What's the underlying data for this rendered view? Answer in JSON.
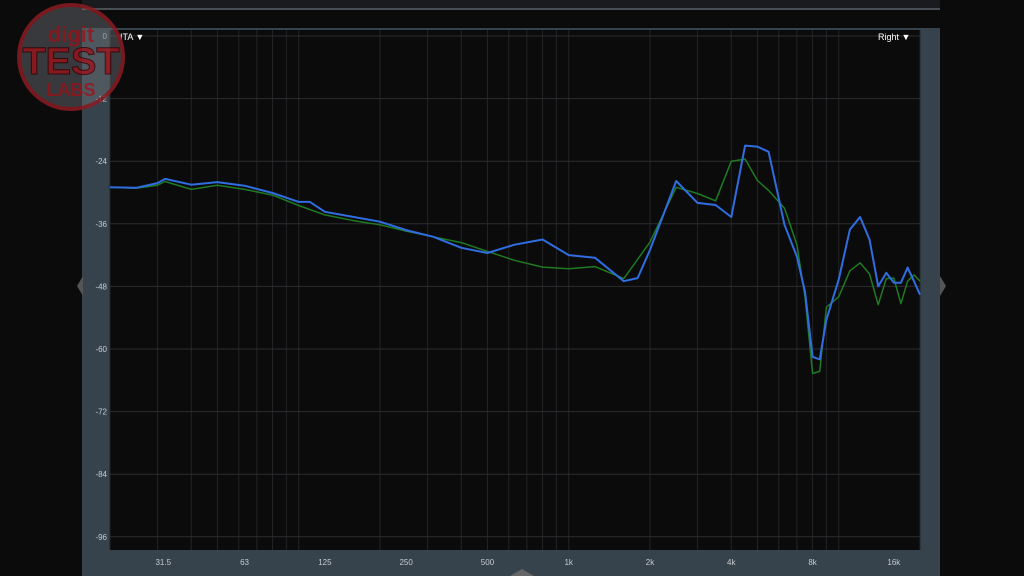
{
  "logo": {
    "text": "digit TEST LABS"
  },
  "left_selector": {
    "label": "ITA ▼"
  },
  "right_selector": {
    "label": "Right ▼"
  },
  "chart_data": {
    "type": "line",
    "title": "",
    "xlabel": "",
    "ylabel": "",
    "x_scale": "log",
    "xlim": [
      20,
      20000
    ],
    "ylim": [
      -100,
      0
    ],
    "grid": true,
    "y_ticks": [
      "0",
      "-12",
      "-24",
      "-36",
      "-48",
      "-60",
      "-72",
      "-84",
      "-96"
    ],
    "x_ticks": [
      {
        "f": 31.5,
        "label": "31.5"
      },
      {
        "f": 63,
        "label": "63"
      },
      {
        "f": 125,
        "label": "125"
      },
      {
        "f": 250,
        "label": "250"
      },
      {
        "f": 500,
        "label": "500"
      },
      {
        "f": 1000,
        "label": "1k"
      },
      {
        "f": 2000,
        "label": "2k"
      },
      {
        "f": 4000,
        "label": "4k"
      },
      {
        "f": 8000,
        "label": "8k"
      },
      {
        "f": 16000,
        "label": "16k"
      }
    ],
    "series": [
      {
        "color": "#2f6de0",
        "points": [
          [
            20,
            -29
          ],
          [
            25,
            -29.1
          ],
          [
            30,
            -28.2
          ],
          [
            32,
            -27.4
          ],
          [
            40,
            -28.5
          ],
          [
            50,
            -28
          ],
          [
            63,
            -28.7
          ],
          [
            80,
            -30.1
          ],
          [
            100,
            -31.8
          ],
          [
            110,
            -31.8
          ],
          [
            125,
            -33.7
          ],
          [
            160,
            -34.7
          ],
          [
            200,
            -35.6
          ],
          [
            250,
            -37.2
          ],
          [
            315,
            -38.5
          ],
          [
            400,
            -40.6
          ],
          [
            500,
            -41.6
          ],
          [
            630,
            -40
          ],
          [
            800,
            -39
          ],
          [
            1000,
            -42
          ],
          [
            1250,
            -42.5
          ],
          [
            1600,
            -47
          ],
          [
            1800,
            -46.4
          ],
          [
            2000,
            -41
          ],
          [
            2500,
            -27.8
          ],
          [
            3000,
            -32
          ],
          [
            3500,
            -32.4
          ],
          [
            4000,
            -34.7
          ],
          [
            4500,
            -21
          ],
          [
            5000,
            -21.2
          ],
          [
            5500,
            -22.2
          ],
          [
            6300,
            -36.2
          ],
          [
            7000,
            -42.3
          ],
          [
            7500,
            -49
          ],
          [
            8000,
            -61.5
          ],
          [
            8500,
            -62
          ],
          [
            9000,
            -54.4
          ],
          [
            10000,
            -46.7
          ],
          [
            11000,
            -37.1
          ],
          [
            12000,
            -34.7
          ],
          [
            13000,
            -39
          ],
          [
            14000,
            -48
          ],
          [
            15000,
            -45.4
          ],
          [
            16000,
            -47.3
          ],
          [
            17000,
            -47.3
          ],
          [
            18000,
            -44.4
          ],
          [
            19000,
            -47
          ],
          [
            20000,
            -49.6
          ]
        ]
      },
      {
        "color": "#1f7a22",
        "points": [
          [
            20,
            -29
          ],
          [
            25,
            -29.2
          ],
          [
            30,
            -28.6
          ],
          [
            32,
            -27.9
          ],
          [
            40,
            -29.4
          ],
          [
            50,
            -28.6
          ],
          [
            63,
            -29.4
          ],
          [
            80,
            -30.5
          ],
          [
            100,
            -32.5
          ],
          [
            125,
            -34.3
          ],
          [
            160,
            -35.4
          ],
          [
            200,
            -36.2
          ],
          [
            250,
            -37.4
          ],
          [
            315,
            -38.5
          ],
          [
            400,
            -39.6
          ],
          [
            500,
            -41.3
          ],
          [
            630,
            -43
          ],
          [
            800,
            -44.3
          ],
          [
            1000,
            -44.6
          ],
          [
            1250,
            -44.2
          ],
          [
            1600,
            -46.5
          ],
          [
            2000,
            -39.5
          ],
          [
            2500,
            -29
          ],
          [
            3000,
            -30.2
          ],
          [
            3500,
            -31.6
          ],
          [
            4000,
            -24
          ],
          [
            4500,
            -23.6
          ],
          [
            5000,
            -27.7
          ],
          [
            5500,
            -29.6
          ],
          [
            6300,
            -33
          ],
          [
            7000,
            -40
          ],
          [
            7500,
            -50
          ],
          [
            8000,
            -64.7
          ],
          [
            8500,
            -64.3
          ],
          [
            9000,
            -52
          ],
          [
            10000,
            -50
          ],
          [
            11000,
            -45
          ],
          [
            12000,
            -43.5
          ],
          [
            13000,
            -45.6
          ],
          [
            14000,
            -51.5
          ],
          [
            15000,
            -46.5
          ],
          [
            16000,
            -46.4
          ],
          [
            17000,
            -51.3
          ],
          [
            18000,
            -47
          ],
          [
            19000,
            -45.8
          ],
          [
            20000,
            -47
          ]
        ]
      }
    ]
  }
}
